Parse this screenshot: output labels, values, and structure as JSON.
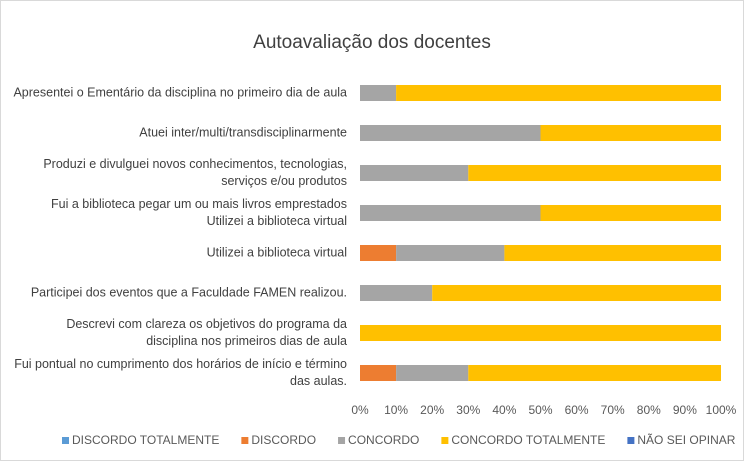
{
  "chart_data": {
    "type": "stacked_bar_horizontal",
    "title": "Autoavaliação dos docentes",
    "categories": [
      "Apresentei o Ementário da disciplina no primeiro dia de aula",
      "Atuei inter/multi/transdisciplinarmente",
      "Produzi e divulguei novos conhecimentos, tecnologias, serviços e/ou produtos",
      "Fui a biblioteca pegar um ou mais livros emprestados Utilizei a biblioteca virtual",
      "Utilizei a biblioteca virtual",
      "Participei dos eventos que a Faculdade FAMEN realizou.",
      "Descrevi com clareza os objetivos do programa da disciplina nos primeiros dias de aula",
      "Fui pontual no cumprimento dos horários de início e término das aulas."
    ],
    "series": [
      {
        "name": "DISCORDO TOTALMENTE",
        "color": "#5b9bd5",
        "values": [
          0,
          0,
          0,
          0,
          0,
          0,
          0,
          0
        ]
      },
      {
        "name": "DISCORDO",
        "color": "#ed7d31",
        "values": [
          0,
          0,
          0,
          0,
          10,
          0,
          0,
          10
        ]
      },
      {
        "name": "CONCORDO",
        "color": "#a5a5a5",
        "values": [
          10,
          50,
          30,
          50,
          30,
          20,
          0,
          20
        ]
      },
      {
        "name": "CONCORDO TOTALMENTE",
        "color": "#ffc000",
        "values": [
          90,
          50,
          70,
          50,
          60,
          80,
          100,
          70
        ]
      },
      {
        "name": "NÃO SEI OPINAR",
        "color": "#4472c4",
        "values": [
          0,
          0,
          0,
          0,
          0,
          0,
          0,
          0
        ]
      }
    ],
    "xlim": [
      0,
      100
    ],
    "xticks": [
      {
        "value": 0,
        "label": "0%"
      },
      {
        "value": 10,
        "label": "10%"
      },
      {
        "value": 20,
        "label": "20%"
      },
      {
        "value": 30,
        "label": "30%"
      },
      {
        "value": 40,
        "label": "40%"
      },
      {
        "value": 50,
        "label": "50%"
      },
      {
        "value": 60,
        "label": "60%"
      },
      {
        "value": 70,
        "label": "70%"
      },
      {
        "value": 80,
        "label": "80%"
      },
      {
        "value": 90,
        "label": "90%"
      },
      {
        "value": 100,
        "label": "100%"
      }
    ],
    "grid": false,
    "legend": "bottom"
  }
}
